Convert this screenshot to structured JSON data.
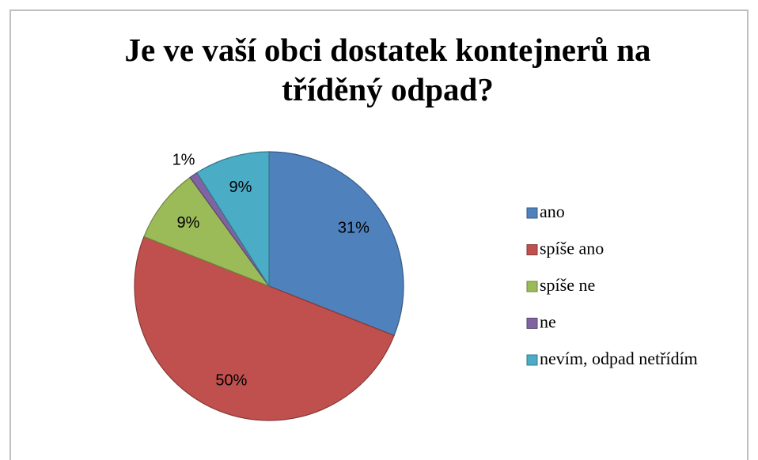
{
  "chart_data": {
    "type": "pie",
    "title": "Je ve vaší obci dostatek kontejnerů na tříděný odpad?",
    "categories": [
      "ano",
      "spíše ano",
      "spíše ne",
      "ne",
      "nevím, odpad netřídím"
    ],
    "values": [
      31,
      50,
      9,
      1,
      9
    ],
    "value_labels": [
      "31%",
      "50%",
      "9%",
      "1%",
      "9%"
    ],
    "colors": [
      "#4f81bd",
      "#c0504d",
      "#9bbb59",
      "#8064a2",
      "#4bacc6"
    ],
    "legend": "right"
  }
}
